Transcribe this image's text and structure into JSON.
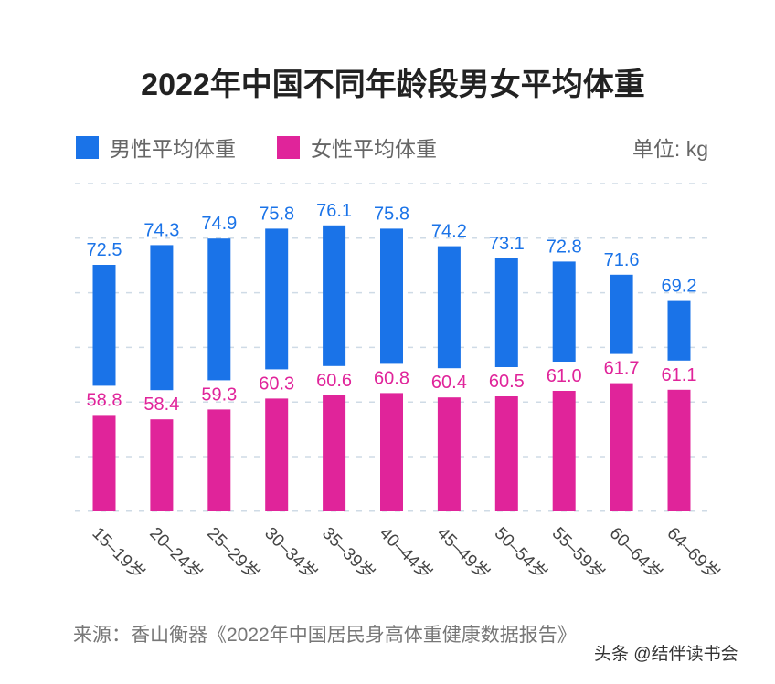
{
  "chart_data": {
    "type": "bar",
    "title": "2022年中国不同年龄段男女平均体重",
    "unit_label": "单位: kg",
    "categories": [
      "15–19岁",
      "20–24岁",
      "25–29岁",
      "30–34岁",
      "35–39岁",
      "40–44岁",
      "45–49岁",
      "50–54岁",
      "55–59岁",
      "60–64岁",
      "64–69岁"
    ],
    "series": [
      {
        "name": "男性平均体重",
        "color": "#1a73e8",
        "values": [
          72.5,
          74.3,
          74.9,
          75.8,
          76.1,
          75.8,
          74.2,
          73.1,
          72.8,
          71.6,
          69.2
        ]
      },
      {
        "name": "女性平均体重",
        "color": "#e0249a",
        "values": [
          58.8,
          58.4,
          59.3,
          60.3,
          60.6,
          60.8,
          60.4,
          60.5,
          61.0,
          61.7,
          61.1
        ]
      }
    ],
    "grid": true,
    "legend_placement": "top-left",
    "source": "来源：香山衡器《2022年中国居民身高体重健康数据报告》",
    "watermark": "头条 @结伴读书会"
  }
}
